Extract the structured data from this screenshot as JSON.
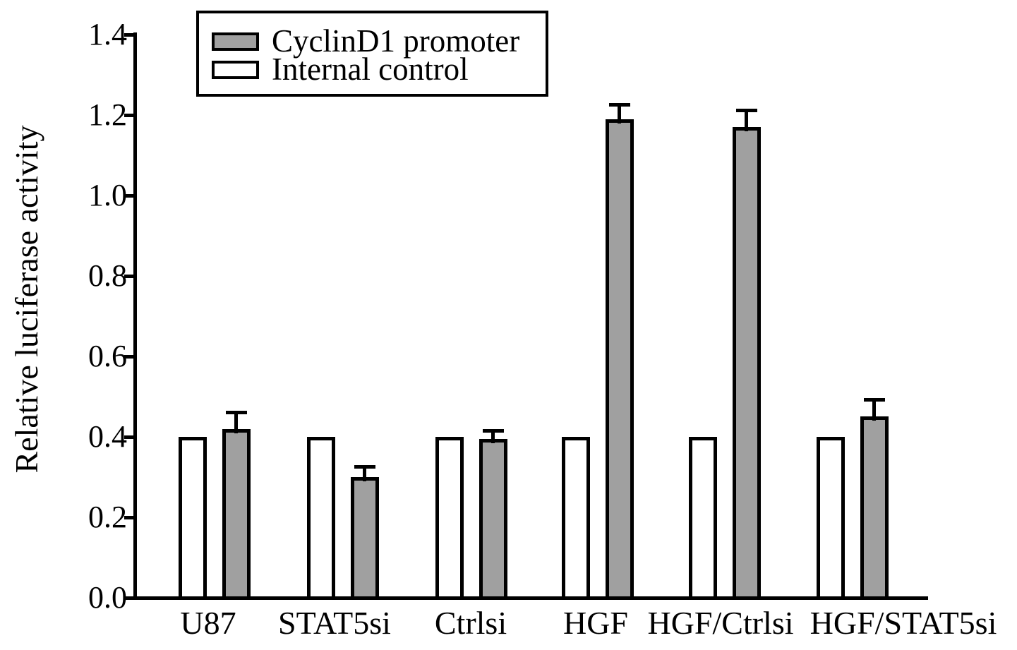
{
  "figure_title": "",
  "chart_data": {
    "type": "bar",
    "title": "",
    "xlabel": "",
    "ylabel": "Relative luciferase activity",
    "categories": [
      "U87",
      "STAT5si",
      "Ctrlsi",
      "HGF",
      "HGF/Ctrlsi",
      "HGF/STAT5si"
    ],
    "series": [
      {
        "name": "CyclinD1 promoter",
        "color": "#a0a0a0",
        "values": [
          0.42,
          0.3,
          0.395,
          1.19,
          1.17,
          0.45
        ],
        "errors": [
          0.04,
          0.025,
          0.02,
          0.035,
          0.04,
          0.04
        ]
      },
      {
        "name": "Internal control",
        "color": "#ffffff",
        "values": [
          0.4,
          0.4,
          0.4,
          0.4,
          0.4,
          0.4
        ],
        "errors": [
          0,
          0,
          0,
          0,
          0,
          0
        ]
      }
    ],
    "pair_order_left_to_right": [
      "Internal control",
      "CyclinD1 promoter"
    ],
    "error_bars": "upper only, cap style T",
    "ylim": [
      0.0,
      1.4
    ],
    "yticks": [
      0.0,
      0.2,
      0.4,
      0.6,
      0.8,
      1.0,
      1.2,
      1.4
    ],
    "ytick_labels": [
      "0.0",
      "0.2",
      "0.4",
      "0.6",
      "0.8",
      "1.0",
      "1.2",
      "1.4"
    ],
    "grid": false,
    "legend_position": "top-left inside plot, boxed"
  }
}
